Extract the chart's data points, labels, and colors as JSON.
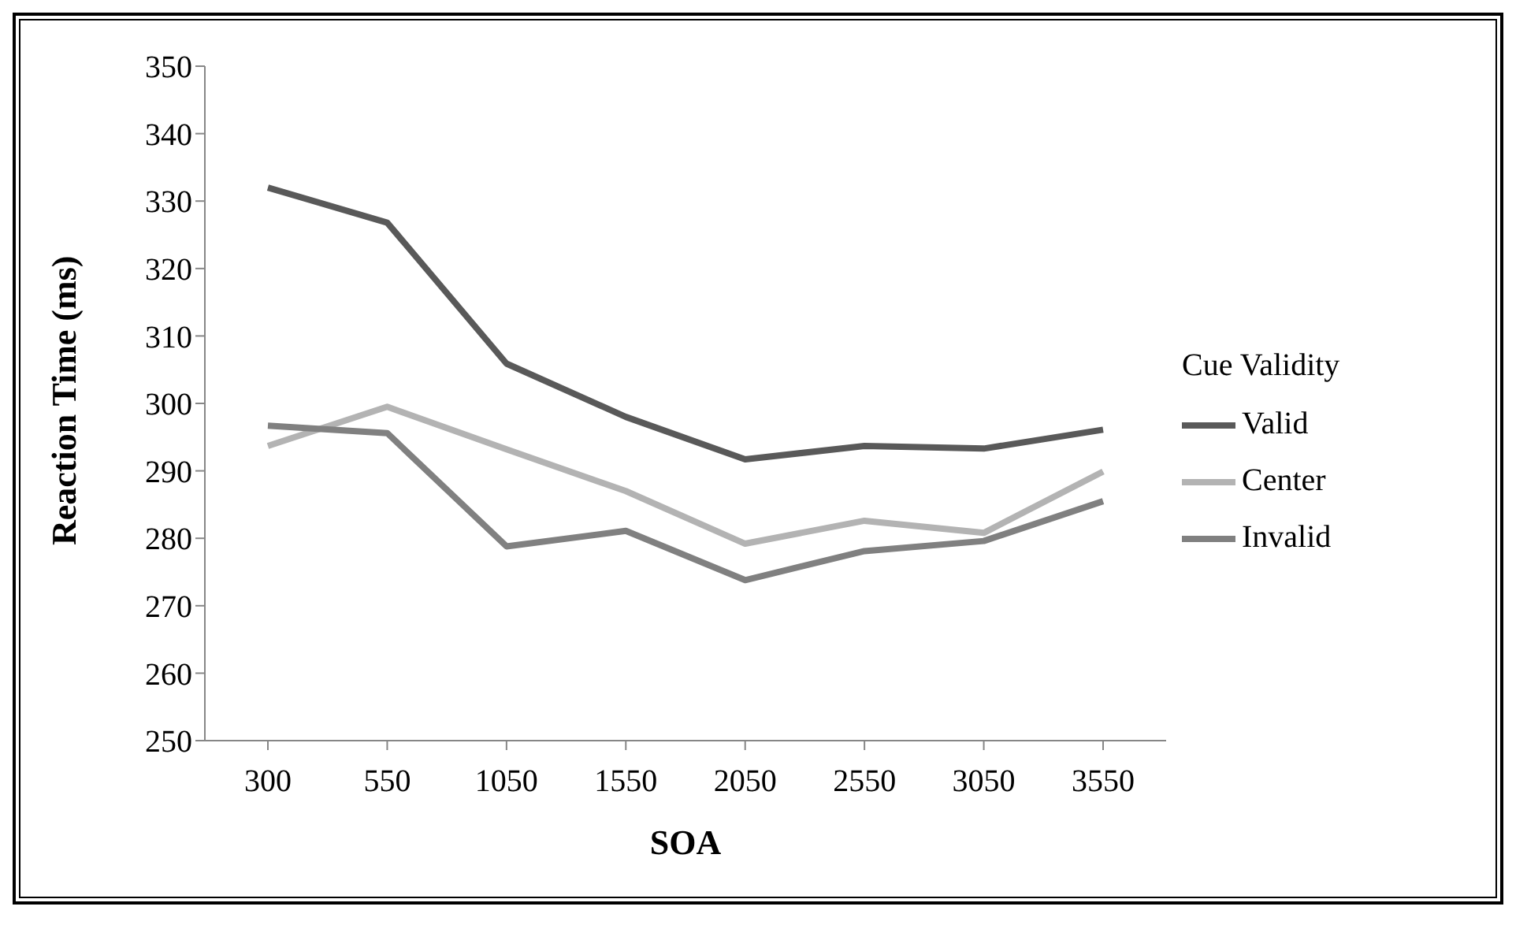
{
  "chart_data": {
    "type": "line",
    "xlabel": "SOA",
    "ylabel": "Reaction Time (ms)",
    "legend_title": "Cue Validity",
    "legend": "right",
    "grid": false,
    "marker": "none",
    "line_style": "solid",
    "categories": [
      "300",
      "550",
      "1050",
      "1550",
      "2050",
      "2550",
      "3050",
      "3550"
    ],
    "ylim": [
      250,
      350
    ],
    "yticks": [
      250,
      260,
      270,
      280,
      290,
      300,
      310,
      320,
      330,
      340,
      350
    ],
    "series": [
      {
        "name": "Valid",
        "color": "#595959",
        "values": [
          332,
          326.8,
          305.9,
          298,
          291.7,
          293.7,
          293.3,
          296.1
        ]
      },
      {
        "name": "Center",
        "color": "#b3b3b3",
        "values": [
          293.7,
          299.5,
          293.2,
          287,
          279.2,
          282.6,
          280.8,
          289.9
        ]
      },
      {
        "name": "Invalid",
        "color": "#808080",
        "values": [
          296.7,
          295.6,
          278.8,
          281.1,
          273.8,
          278.1,
          279.6,
          285.5
        ]
      }
    ]
  }
}
